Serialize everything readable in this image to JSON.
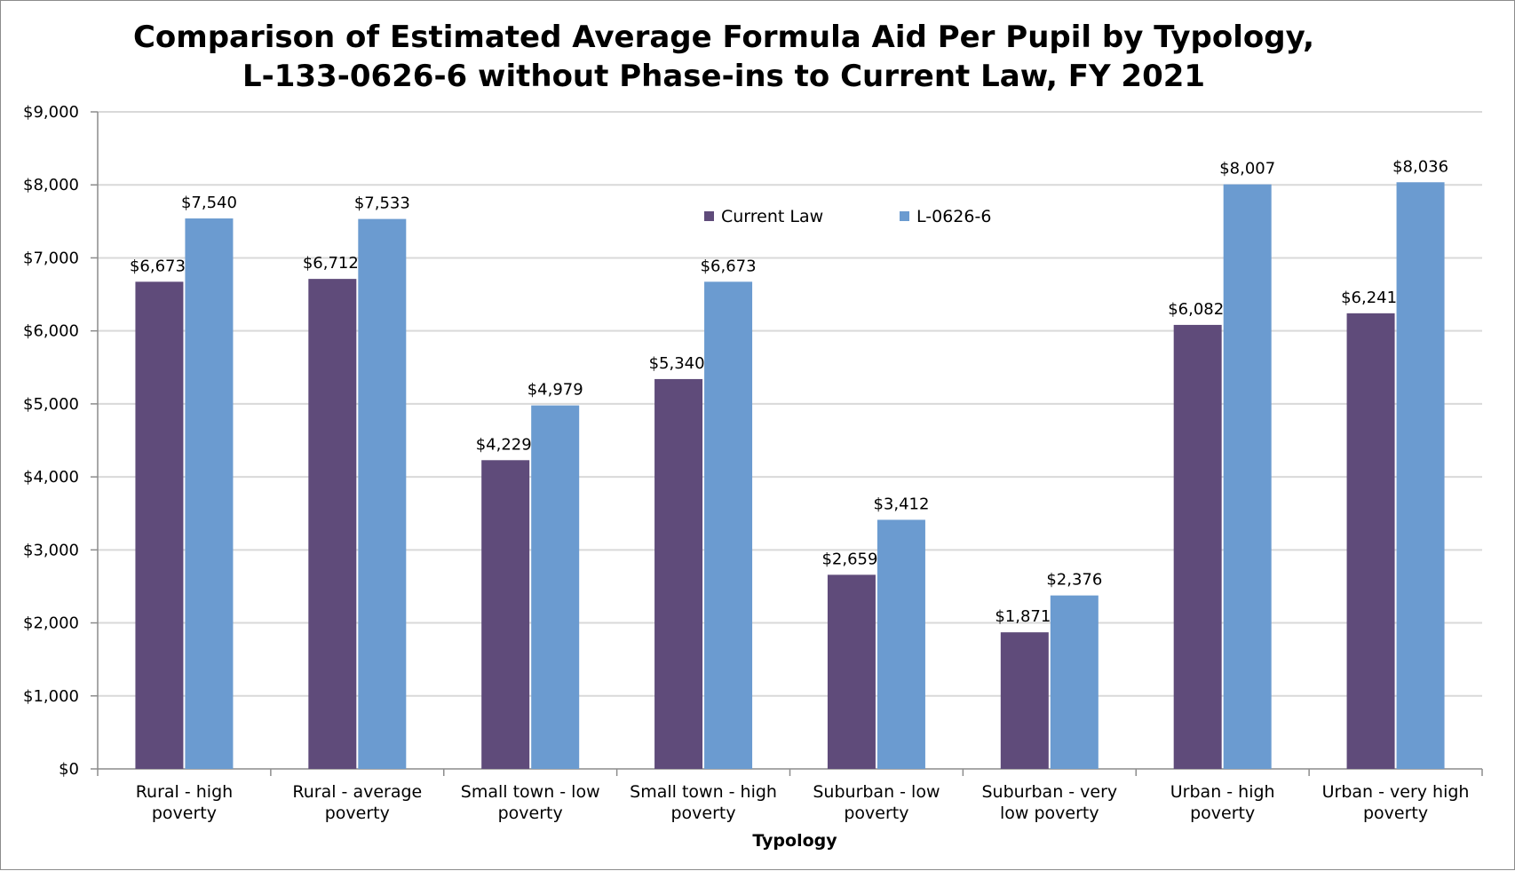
{
  "chart_data": {
    "type": "bar",
    "title_lines": [
      "Comparison of Estimated Average Formula Aid Per Pupil by Typology,",
      "L-133-0626-6 without Phase-ins to Current Law, FY 2021"
    ],
    "xlabel": "Typology",
    "ylabel": "",
    "ylim": [
      0,
      9000
    ],
    "yticks": [
      0,
      1000,
      2000,
      3000,
      4000,
      5000,
      6000,
      7000,
      8000,
      9000
    ],
    "ytick_labels": [
      "$0",
      "$1,000",
      "$2,000",
      "$3,000",
      "$4,000",
      "$5,000",
      "$6,000",
      "$7,000",
      "$8,000",
      "$9,000"
    ],
    "grid": true,
    "legend_position": "top-center",
    "categories": [
      [
        "Rural - high",
        "poverty"
      ],
      [
        "Rural - average",
        "poverty"
      ],
      [
        "Small town - low",
        "poverty"
      ],
      [
        "Small town - high",
        "poverty"
      ],
      [
        "Suburban - low",
        "poverty"
      ],
      [
        "Suburban - very",
        "low poverty"
      ],
      [
        "Urban - high",
        "poverty"
      ],
      [
        "Urban - very high",
        "poverty"
      ]
    ],
    "series": [
      {
        "name": "Current Law",
        "color": "#5f4b7a",
        "values": [
          6673,
          6712,
          4229,
          5340,
          2659,
          1871,
          6082,
          6241
        ],
        "labels": [
          "$6,673",
          "$6,712",
          "$4,229",
          "$5,340",
          "$2,659",
          "$1,871",
          "$6,082",
          "$6,241"
        ]
      },
      {
        "name": "L-0626-6",
        "color": "#6b9bd0",
        "values": [
          7540,
          7533,
          4979,
          6673,
          3412,
          2376,
          8007,
          8036
        ],
        "labels": [
          "$7,540",
          "$7,533",
          "$4,979",
          "$6,673",
          "$3,412",
          "$2,376",
          "$8,007",
          "$8,036"
        ]
      }
    ]
  }
}
